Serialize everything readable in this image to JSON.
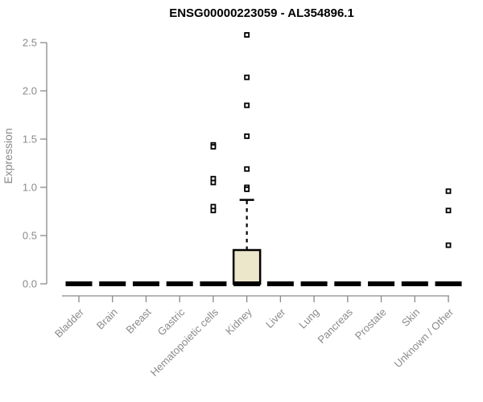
{
  "chart_data": {
    "type": "boxplot",
    "title": "ENSG00000223059 - AL354896.1",
    "ylabel": "Expression",
    "ylim": [
      0,
      2.5
    ],
    "y_ticks": [
      "0.0",
      "0.5",
      "1.0",
      "1.5",
      "2.0",
      "2.5"
    ],
    "grid": "off",
    "legend": "none",
    "categories": [
      "Bladder",
      "Brain",
      "Breast",
      "Gastric",
      "Hematopoietic cells",
      "Kidney",
      "Liver",
      "Lung",
      "Pancreas",
      "Prostate",
      "Skin",
      "Unknown / Other"
    ],
    "boxes": [
      {
        "category": "Bladder",
        "q1": 0,
        "median": 0,
        "q3": 0,
        "whisker_low": 0,
        "whisker_high": 0,
        "outliers": []
      },
      {
        "category": "Brain",
        "q1": 0,
        "median": 0,
        "q3": 0,
        "whisker_low": 0,
        "whisker_high": 0,
        "outliers": []
      },
      {
        "category": "Breast",
        "q1": 0,
        "median": 0,
        "q3": 0,
        "whisker_low": 0,
        "whisker_high": 0,
        "outliers": []
      },
      {
        "category": "Gastric",
        "q1": 0,
        "median": 0,
        "q3": 0,
        "whisker_low": 0,
        "whisker_high": 0,
        "outliers": []
      },
      {
        "category": "Hematopoietic cells",
        "q1": 0,
        "median": 0,
        "q3": 0,
        "whisker_low": 0,
        "whisker_high": 0,
        "outliers": [
          1.44,
          1.42,
          1.09,
          1.05,
          0.8,
          0.76
        ]
      },
      {
        "category": "Kidney",
        "q1": 0,
        "median": 0,
        "q3": 0.35,
        "whisker_low": 0,
        "whisker_high": 0.87,
        "outliers": [
          2.58,
          2.14,
          1.85,
          1.53,
          1.19,
          1.0,
          0.98
        ]
      },
      {
        "category": "Liver",
        "q1": 0,
        "median": 0,
        "q3": 0,
        "whisker_low": 0,
        "whisker_high": 0,
        "outliers": []
      },
      {
        "category": "Lung",
        "q1": 0,
        "median": 0,
        "q3": 0,
        "whisker_low": 0,
        "whisker_high": 0,
        "outliers": []
      },
      {
        "category": "Pancreas",
        "q1": 0,
        "median": 0,
        "q3": 0,
        "whisker_low": 0,
        "whisker_high": 0,
        "outliers": []
      },
      {
        "category": "Prostate",
        "q1": 0,
        "median": 0,
        "q3": 0,
        "whisker_low": 0,
        "whisker_high": 0,
        "outliers": []
      },
      {
        "category": "Skin",
        "q1": 0,
        "median": 0,
        "q3": 0,
        "whisker_low": 0,
        "whisker_high": 0,
        "outliers": []
      },
      {
        "category": "Unknown / Other",
        "q1": 0,
        "median": 0,
        "q3": 0,
        "whisker_low": 0,
        "whisker_high": 0,
        "outliers": [
          0.96,
          0.76,
          0.4
        ]
      }
    ],
    "colors": {
      "box_fill": "#ECE6CA",
      "box_stroke": "#000000",
      "median": "#000000",
      "outlier_stroke": "#000000",
      "outlier_fill": "#ffffff",
      "axis": "#8a8a8a",
      "title": "#000000",
      "background": "#ffffff"
    }
  }
}
